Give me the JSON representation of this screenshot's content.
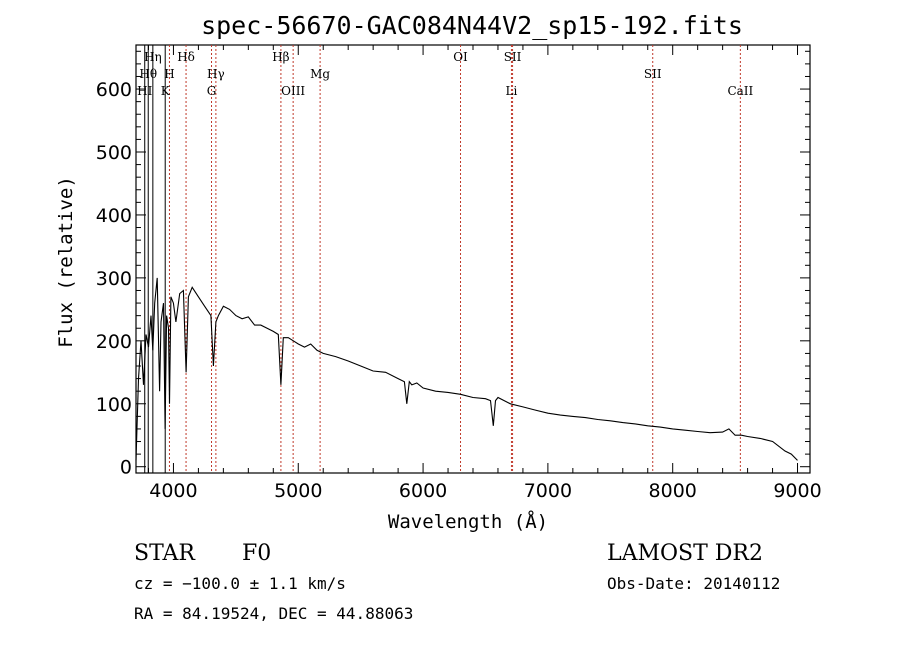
{
  "chart_data": {
    "type": "line",
    "title": "spec-56670-GAC084N44V2_sp15-192.fits",
    "xlabel": "Wavelength (Å)",
    "ylabel": "Flux (relative)",
    "xlim": [
      3700,
      9100
    ],
    "ylim": [
      -10,
      670
    ],
    "grid": false,
    "x_ticks": [
      4000,
      5000,
      6000,
      7000,
      8000,
      9000
    ],
    "y_ticks": [
      0,
      100,
      200,
      300,
      400,
      500,
      600
    ],
    "series": [
      {
        "x": [
          3700,
          3720,
          3740,
          3760,
          3780,
          3800,
          3820,
          3835,
          3850,
          3870,
          3889,
          3900,
          3920,
          3933,
          3945,
          3960,
          3968,
          3980,
          4000,
          4020,
          4050,
          4080,
          4101,
          4120,
          4150,
          4200,
          4250,
          4300,
          4320,
          4340,
          4360,
          4400,
          4450,
          4500,
          4550,
          4600,
          4650,
          4700,
          4750,
          4800,
          4840,
          4861,
          4880,
          4920,
          4960,
          5000,
          5050,
          5100,
          5150,
          5200,
          5300,
          5400,
          5500,
          5600,
          5700,
          5800,
          5850,
          5870,
          5890,
          5910,
          5950,
          6000,
          6100,
          6200,
          6300,
          6400,
          6500,
          6540,
          6563,
          6580,
          6600,
          6700,
          6800,
          6900,
          7000,
          7100,
          7200,
          7300,
          7400,
          7500,
          7600,
          7700,
          7800,
          7900,
          8000,
          8100,
          8200,
          8300,
          8400,
          8450,
          8500,
          8550,
          8600,
          8700,
          8800,
          8900,
          8950,
          9000
        ],
        "y": [
          10,
          140,
          200,
          130,
          210,
          190,
          240,
          185,
          260,
          300,
          120,
          230,
          260,
          60,
          240,
          220,
          100,
          270,
          260,
          230,
          275,
          280,
          150,
          270,
          285,
          270,
          255,
          240,
          160,
          230,
          240,
          255,
          250,
          240,
          235,
          238,
          225,
          225,
          220,
          215,
          210,
          130,
          205,
          205,
          200,
          195,
          190,
          195,
          185,
          180,
          175,
          168,
          160,
          152,
          150,
          140,
          135,
          100,
          135,
          130,
          133,
          125,
          120,
          118,
          115,
          110,
          108,
          105,
          65,
          105,
          110,
          100,
          95,
          90,
          85,
          82,
          80,
          78,
          75,
          73,
          70,
          68,
          65,
          63,
          60,
          58,
          56,
          54,
          55,
          60,
          50,
          50,
          48,
          45,
          40,
          25,
          20,
          10
        ]
      }
    ],
    "spectral_lines": [
      {
        "label": "Hη",
        "x": 3835,
        "row": 1,
        "style": "black"
      },
      {
        "label": "Hθ",
        "x": 3798,
        "row": 2,
        "style": "black"
      },
      {
        "label": "H",
        "x": 3968,
        "row": 2,
        "style": "red"
      },
      {
        "label": "Hδ",
        "x": 4101,
        "row": 1,
        "style": "red"
      },
      {
        "label": "Hγ",
        "x": 4340,
        "row": 2,
        "style": "red"
      },
      {
        "label": "Hβ",
        "x": 4861,
        "row": 1,
        "style": "red"
      },
      {
        "label": "Mg",
        "x": 5175,
        "row": 2,
        "style": "red"
      },
      {
        "label": "OI",
        "x": 6300,
        "row": 1,
        "style": "red"
      },
      {
        "label": "SII",
        "x": 6717,
        "row": 1,
        "style": "red"
      },
      {
        "label": "SII",
        "x": 7840,
        "row": 2,
        "style": "red"
      },
      {
        "label": "HI",
        "x": 3770,
        "row": 3,
        "style": "black"
      },
      {
        "label": "K",
        "x": 3934,
        "row": 3,
        "style": "black"
      },
      {
        "label": "G",
        "x": 4305,
        "row": 3,
        "style": "red"
      },
      {
        "label": "OIII",
        "x": 4959,
        "row": 3,
        "style": "red"
      },
      {
        "label": "Li",
        "x": 6708,
        "row": 3,
        "style": "red"
      },
      {
        "label": "CaII",
        "x": 8542,
        "row": 3,
        "style": "red"
      }
    ]
  },
  "info": {
    "object_class": "STAR",
    "subclass": "F0",
    "survey": "LAMOST DR2",
    "cz": "cz = −100.0 ± 1.1 km/s",
    "obs_date": "Obs-Date: 20140112",
    "coords": "RA =  84.19524, DEC =  44.88063"
  }
}
